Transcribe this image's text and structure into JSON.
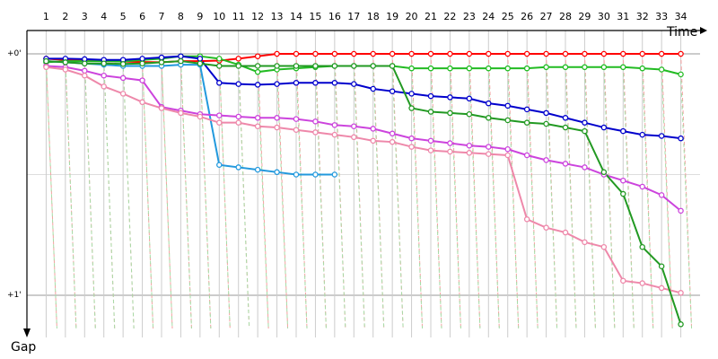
{
  "chart_data": {
    "type": "line",
    "x_label": "Time",
    "y_label": "Gap",
    "x_top_labels": [
      "1",
      "2",
      "3",
      "4",
      "5",
      "6",
      "7",
      "8",
      "9",
      "10",
      "11",
      "12",
      "13",
      "14",
      "15",
      "16",
      "17",
      "18",
      "19",
      "20",
      "21",
      "22",
      "23",
      "24",
      "25",
      "26",
      "27",
      "28",
      "29",
      "30",
      "31",
      "32",
      "33",
      "34"
    ],
    "y_tick_labels": [
      "+0'",
      "+1'"
    ],
    "y_tick_values": [
      0,
      1
    ],
    "x_range": [
      0,
      35
    ],
    "y_range": [
      0,
      1.12
    ],
    "grid": true,
    "series": [
      {
        "color": "#ff0000",
        "x": [
          1,
          2,
          3,
          4,
          5,
          6,
          7,
          8,
          9,
          10,
          11,
          12,
          13,
          14,
          15,
          16,
          17,
          18,
          19,
          20,
          21,
          22,
          23,
          24,
          25,
          26,
          27,
          28,
          29,
          30,
          31,
          32,
          33,
          34
        ],
        "y": [
          0.02,
          0.025,
          0.028,
          0.03,
          0.032,
          0.034,
          0.035,
          0.03,
          0.03,
          0.028,
          0.02,
          0.01,
          0,
          0,
          0,
          0,
          0,
          0,
          0,
          0,
          0,
          0,
          0,
          0,
          0,
          0,
          0,
          0,
          0,
          0,
          0,
          0,
          0,
          0
        ]
      },
      {
        "color": "#22bb22",
        "x": [
          1,
          2,
          3,
          4,
          5,
          6,
          7,
          8,
          9,
          10,
          11,
          12,
          13,
          14,
          15,
          16,
          17,
          18,
          19,
          20,
          21,
          22,
          23,
          24,
          25,
          26,
          27,
          28,
          29,
          30,
          31,
          32,
          33,
          34
        ],
        "y": [
          0.035,
          0.03,
          0.03,
          0.03,
          0.032,
          0.025,
          0.02,
          0.01,
          0.01,
          0.02,
          0.045,
          0.075,
          0.065,
          0.06,
          0.055,
          0.05,
          0.05,
          0.05,
          0.05,
          0.06,
          0.06,
          0.06,
          0.06,
          0.06,
          0.06,
          0.06,
          0.055,
          0.055,
          0.055,
          0.055,
          0.055,
          0.06,
          0.065,
          0.085
        ]
      },
      {
        "color": "#0000cc",
        "x": [
          1,
          2,
          3,
          4,
          5,
          6,
          7,
          8,
          9,
          10,
          11,
          12,
          13,
          14,
          15,
          16,
          17,
          18,
          19,
          20,
          21,
          22,
          23,
          24,
          25,
          26,
          27,
          28,
          29,
          30,
          31,
          32,
          33,
          34
        ],
        "y": [
          0.02,
          0.02,
          0.022,
          0.025,
          0.025,
          0.02,
          0.015,
          0.01,
          0.02,
          0.12,
          0.125,
          0.128,
          0.125,
          0.12,
          0.12,
          0.12,
          0.125,
          0.145,
          0.155,
          0.165,
          0.175,
          0.18,
          0.185,
          0.205,
          0.215,
          0.23,
          0.245,
          0.265,
          0.285,
          0.305,
          0.32,
          0.335,
          0.34,
          0.35
        ]
      },
      {
        "color": "#2299dd",
        "x": [
          1,
          2,
          3,
          4,
          5,
          6,
          7,
          8,
          9,
          10,
          11,
          12,
          13,
          14,
          15,
          16
        ],
        "y": [
          0.03,
          0.035,
          0.04,
          0.045,
          0.05,
          0.05,
          0.05,
          0.045,
          0.045,
          0.46,
          0.47,
          0.48,
          0.49,
          0.5,
          0.5,
          0.5
        ]
      },
      {
        "color": "#cc44dd",
        "x": [
          1,
          2,
          3,
          4,
          5,
          6,
          7,
          8,
          9,
          10,
          11,
          12,
          13,
          14,
          15,
          16,
          17,
          18,
          19,
          20,
          21,
          22,
          23,
          24,
          25,
          26,
          27,
          28,
          29,
          30,
          31,
          32,
          33,
          34
        ],
        "y": [
          0.05,
          0.055,
          0.07,
          0.09,
          0.1,
          0.11,
          0.22,
          0.235,
          0.25,
          0.255,
          0.26,
          0.265,
          0.265,
          0.27,
          0.28,
          0.295,
          0.3,
          0.31,
          0.33,
          0.35,
          0.36,
          0.37,
          0.38,
          0.385,
          0.395,
          0.42,
          0.44,
          0.455,
          0.47,
          0.5,
          0.525,
          0.55,
          0.585,
          0.65
        ]
      },
      {
        "color": "#ee88aa",
        "x": [
          1,
          2,
          3,
          4,
          5,
          6,
          7,
          8,
          9,
          10,
          11,
          12,
          13,
          14,
          15,
          16,
          17,
          18,
          19,
          20,
          21,
          22,
          23,
          24,
          25,
          26,
          27,
          28,
          29,
          30,
          31,
          32,
          33,
          34
        ],
        "y": [
          0.055,
          0.065,
          0.09,
          0.135,
          0.165,
          0.2,
          0.225,
          0.245,
          0.26,
          0.285,
          0.285,
          0.3,
          0.305,
          0.315,
          0.325,
          0.335,
          0.345,
          0.36,
          0.365,
          0.385,
          0.4,
          0.405,
          0.41,
          0.415,
          0.42,
          0.685,
          0.72,
          0.74,
          0.78,
          0.8,
          0.94,
          0.95,
          0.97,
          0.99
        ]
      },
      {
        "color": "#229922",
        "x": [
          1,
          2,
          3,
          4,
          5,
          6,
          7,
          8,
          9,
          10,
          11,
          12,
          13,
          14,
          15,
          16,
          17,
          18,
          19,
          20,
          21,
          22,
          23,
          24,
          25,
          26,
          27,
          28,
          29,
          30,
          31,
          32,
          33,
          34
        ],
        "y": [
          0.03,
          0.035,
          0.04,
          0.04,
          0.042,
          0.04,
          0.035,
          0.03,
          0.04,
          0.05,
          0.05,
          0.05,
          0.05,
          0.05,
          0.05,
          0.05,
          0.05,
          0.05,
          0.05,
          0.225,
          0.24,
          0.245,
          0.25,
          0.265,
          0.275,
          0.285,
          0.29,
          0.305,
          0.32,
          0.49,
          0.58,
          0.8,
          0.88,
          1.12
        ]
      }
    ]
  }
}
